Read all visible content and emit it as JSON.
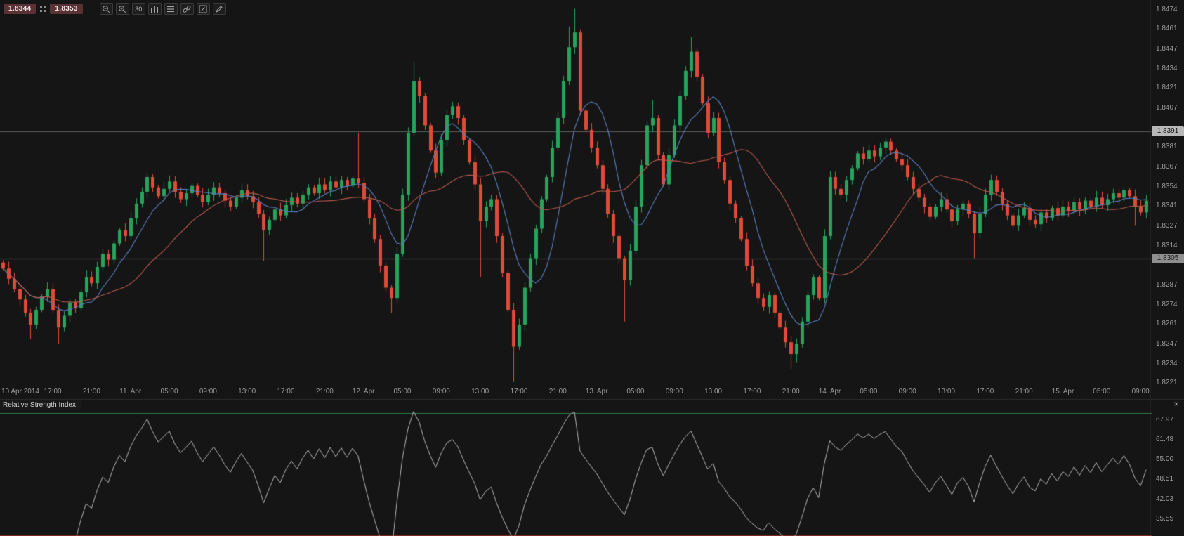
{
  "app": {
    "background": "#151515",
    "axis_text_color": "#9a9a9a"
  },
  "toolbar": {
    "sell_price": "1.8344",
    "buy_price": "1.8353",
    "timeframe_label": "30",
    "icons": [
      "spread",
      "zoom-out",
      "zoom-in",
      "timeframe",
      "chart-type",
      "indicator-list",
      "link",
      "edit",
      "draw"
    ]
  },
  "rsi_panel": {
    "title": "Relative Strength Index",
    "close_label": "×"
  },
  "chart_data": [
    {
      "type": "candlestick",
      "title": "",
      "grid": false,
      "legend": false,
      "colors": {
        "bull": "#27a35c",
        "bear": "#df4b38"
      },
      "price_axis": {
        "range": [
          1.822,
          1.848
        ],
        "ticks": [
          1.8474,
          1.8461,
          1.8447,
          1.8434,
          1.8421,
          1.8407,
          1.8381,
          1.8367,
          1.8354,
          1.8341,
          1.8327,
          1.8314,
          1.8287,
          1.8274,
          1.8261,
          1.8247,
          1.8234,
          1.8221
        ],
        "levels": [
          {
            "value": 1.8391,
            "label": "1.8391",
            "badge_bg": "#b8b8b8",
            "badge_text": "#151515",
            "line_color": "#5e5e5e"
          },
          {
            "value": 1.8305,
            "label": "1.8305",
            "badge_bg": "#8f8f8f",
            "badge_text": "#151515",
            "line_color": "#5e5e5e"
          }
        ]
      },
      "x_ticks": [
        "10 Apr 2014",
        "17:00",
        "21:00",
        "11. Apr",
        "05:00",
        "09:00",
        "13:00",
        "17:00",
        "21:00",
        "12. Apr",
        "05:00",
        "09:00",
        "13:00",
        "17:00",
        "21:00",
        "13. Apr",
        "05:00",
        "09:00",
        "13:00",
        "17:00",
        "21:00",
        "14. Apr",
        "05:00",
        "09:00",
        "13:00",
        "17:00",
        "21:00",
        "15. Apr",
        "05:00",
        "09:00"
      ],
      "x_tick_anchor": 2,
      "x_tick_interval": 7,
      "overlays": [
        {
          "name": "ma-fast",
          "type": "sma",
          "period": 8,
          "color": "#5b80c4"
        },
        {
          "name": "ma-slow",
          "type": "sma",
          "period": 21,
          "color": "#bb5a4e"
        }
      ],
      "series": {
        "open_first": 1.8302,
        "closes": [
          1.8298,
          1.8291,
          1.8284,
          1.8277,
          1.8268,
          1.826,
          1.827,
          1.8279,
          1.8284,
          1.827,
          1.8258,
          1.8266,
          1.8275,
          1.8271,
          1.8282,
          1.8292,
          1.8288,
          1.8299,
          1.8308,
          1.8304,
          1.8315,
          1.8324,
          1.832,
          1.8332,
          1.8342,
          1.835,
          1.836,
          1.8353,
          1.8347,
          1.8352,
          1.8357,
          1.835,
          1.8345,
          1.8349,
          1.8354,
          1.8348,
          1.8343,
          1.8348,
          1.8353,
          1.8349,
          1.8344,
          1.834,
          1.8346,
          1.8351,
          1.8347,
          1.8343,
          1.8335,
          1.8324,
          1.8331,
          1.8338,
          1.8334,
          1.8341,
          1.8346,
          1.8342,
          1.8348,
          1.8353,
          1.8349,
          1.8355,
          1.8351,
          1.8357,
          1.8353,
          1.8358,
          1.8354,
          1.8359,
          1.8356,
          1.8345,
          1.8332,
          1.8318,
          1.83,
          1.8285,
          1.8278,
          1.8308,
          1.8348,
          1.839,
          1.8425,
          1.8415,
          1.8395,
          1.8378,
          1.8363,
          1.8385,
          1.8402,
          1.8408,
          1.84,
          1.8385,
          1.837,
          1.8355,
          1.833,
          1.834,
          1.8345,
          1.832,
          1.8295,
          1.827,
          1.8245,
          1.826,
          1.8285,
          1.8305,
          1.8325,
          1.8345,
          1.836,
          1.838,
          1.84,
          1.8425,
          1.8448,
          1.8458,
          1.8405,
          1.8392,
          1.838,
          1.8368,
          1.8352,
          1.8335,
          1.832,
          1.8305,
          1.829,
          1.831,
          1.834,
          1.8368,
          1.8395,
          1.84,
          1.8375,
          1.8355,
          1.8375,
          1.8395,
          1.8415,
          1.8432,
          1.8445,
          1.8428,
          1.841,
          1.839,
          1.84,
          1.837,
          1.8358,
          1.8342,
          1.8332,
          1.8318,
          1.83,
          1.8288,
          1.8278,
          1.8272,
          1.828,
          1.8268,
          1.8258,
          1.8248,
          1.824,
          1.8247,
          1.8262,
          1.828,
          1.8292,
          1.8278,
          1.832,
          1.836,
          1.8352,
          1.8348,
          1.8358,
          1.8366,
          1.8376,
          1.8372,
          1.8378,
          1.8374,
          1.838,
          1.8384,
          1.8378,
          1.8372,
          1.8368,
          1.836,
          1.8352,
          1.8346,
          1.834,
          1.8333,
          1.834,
          1.8345,
          1.8338,
          1.833,
          1.8338,
          1.8342,
          1.8335,
          1.8322,
          1.8335,
          1.8348,
          1.8358,
          1.835,
          1.8342,
          1.8334,
          1.8327,
          1.8334,
          1.8339,
          1.8331,
          1.8328,
          1.8336,
          1.8332,
          1.8339,
          1.8334,
          1.834,
          1.8337,
          1.8343,
          1.8338,
          1.8344,
          1.834,
          1.8346,
          1.8341,
          1.8345,
          1.8349,
          1.8346,
          1.8351,
          1.8347,
          1.834,
          1.8336,
          1.8344
        ],
        "wick_highs": {
          "64": 1.839,
          "74": 1.8438,
          "102": 1.8462,
          "103": 1.8474,
          "117": 1.8412,
          "124": 1.8455
        },
        "wick_lows": {
          "5": 1.825,
          "10": 1.8247,
          "47": 1.8303,
          "70": 1.8268,
          "86": 1.8292,
          "92": 1.8221,
          "112": 1.8262,
          "142": 1.823,
          "143": 1.8234,
          "175": 1.8305,
          "204": 1.8327
        }
      }
    },
    {
      "type": "line",
      "name": "Relative Strength Index",
      "derived_from": "rsi(14) of candle closes",
      "period": 14,
      "color": "#b8b8b8",
      "range": [
        29.8,
        70.9
      ],
      "axis_ticks": [
        67.97,
        61.48,
        55.0,
        48.51,
        42.03,
        35.55
      ],
      "levels": [
        {
          "value": 70,
          "color": "#2e7d4c",
          "width": 1
        },
        {
          "value": 30,
          "color": "#7e2b27",
          "width": 2
        }
      ]
    }
  ]
}
